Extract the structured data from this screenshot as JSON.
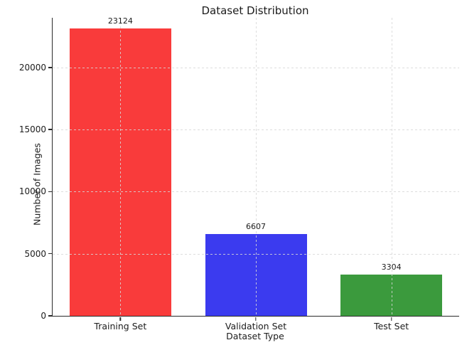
{
  "title": "Dataset Distribution",
  "chart_data": {
    "type": "bar",
    "title": "Dataset Distribution",
    "xlabel": "Dataset Type",
    "ylabel": "Number of Images",
    "categories": [
      "Training Set",
      "Validation Set",
      "Test Set"
    ],
    "values": [
      23124,
      6607,
      3304
    ],
    "bar_value_labels": [
      "23124",
      "6607",
      "3304"
    ],
    "bar_colors": [
      "#f93b3b",
      "#3b3bef",
      "#3b9a3d"
    ],
    "ylim": [
      0,
      24000
    ],
    "yticks": [
      0,
      5000,
      10000,
      15000,
      20000
    ],
    "ytick_labels": [
      "0",
      "5000",
      "10000",
      "15000",
      "20000"
    ],
    "bar_width_fraction": 0.75,
    "grid": "dashed light-gray, horizontal at yticks and vertical at bar centers, drawn over bars",
    "legend_position": "none",
    "spines": [
      "left",
      "bottom"
    ],
    "spine_color": "#2a2a2a",
    "grid_color": "#d7d7d7"
  }
}
